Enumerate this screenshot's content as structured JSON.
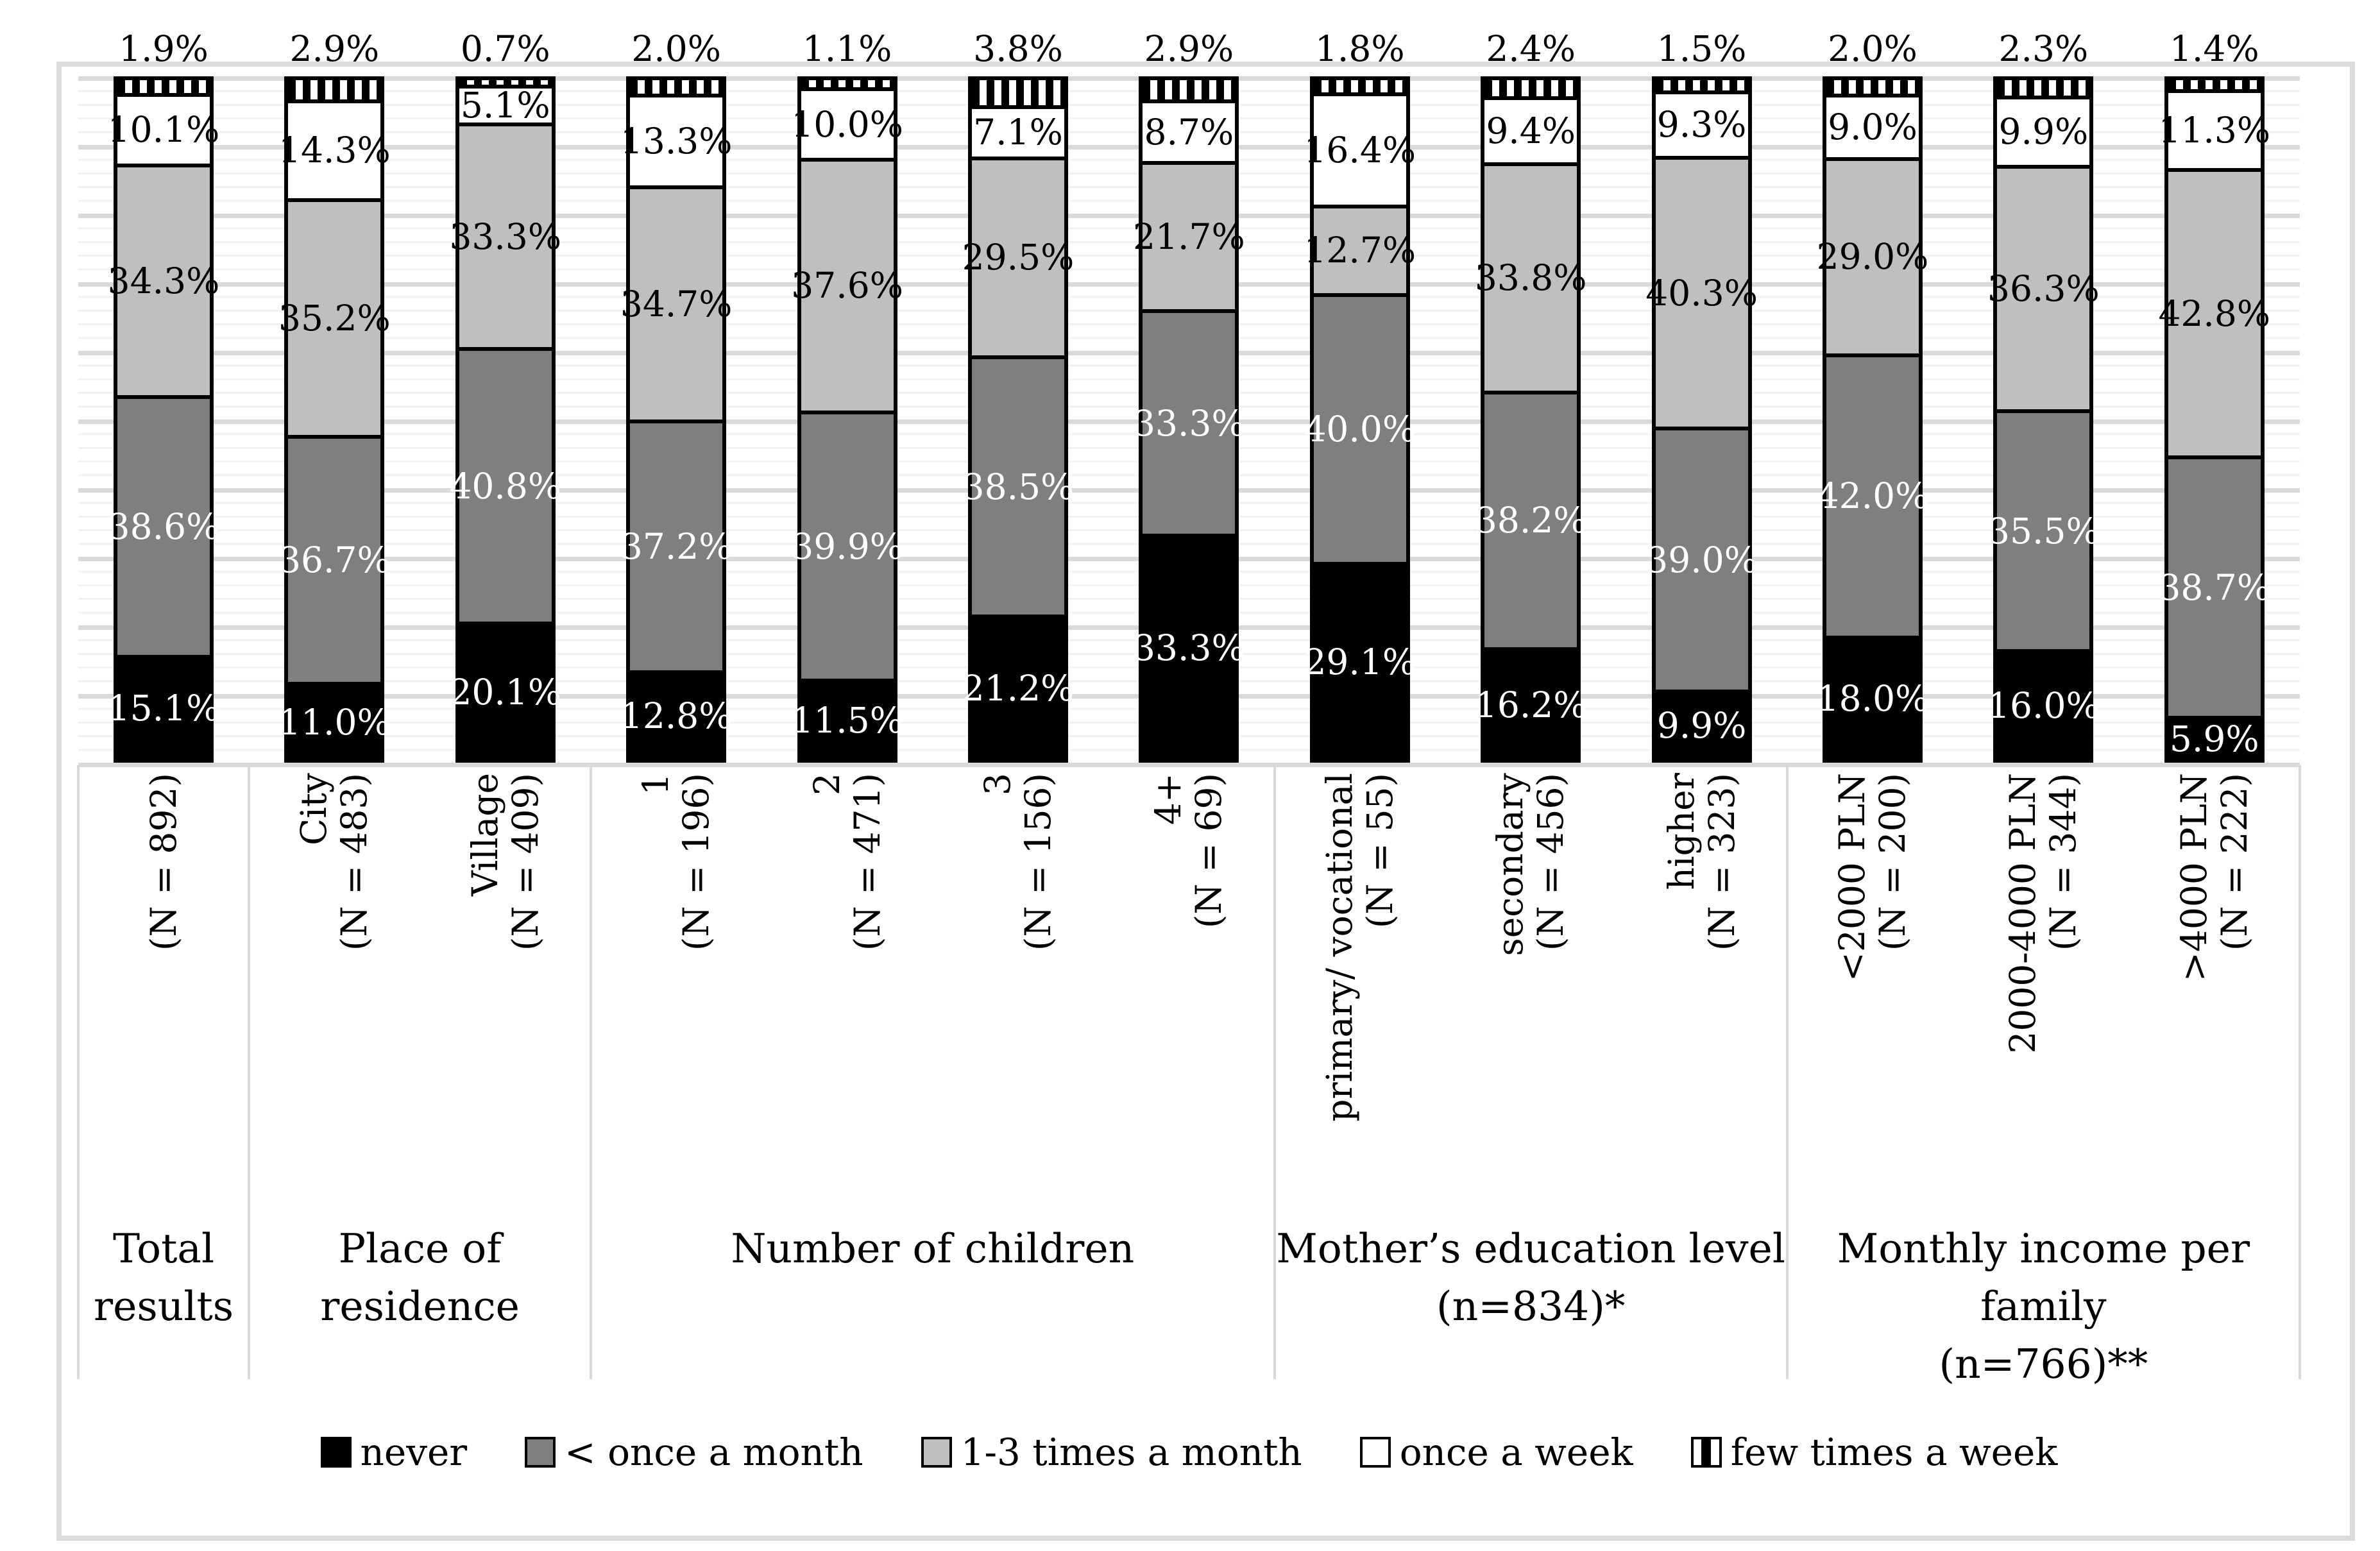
{
  "chart_data": {
    "type": "bar",
    "variant": "100-percent-stacked-vertical",
    "title": "",
    "percent_axis": {
      "min": 0,
      "max": 100,
      "major_gridline_step": 10,
      "minor_gridline_step": 2,
      "grid": true,
      "tick_labels_visible": false
    },
    "stack_order_bottom_to_top": [
      "never",
      "lt_once_month",
      "one_three_month",
      "once_week",
      "few_week"
    ],
    "series_colors": {
      "never": "#000000",
      "lt_once_month": "#7F7F7F",
      "one_three_month": "#BFBFBF",
      "once_week": "#FFFFFF",
      "few_week": "black-white-vertical-stripes"
    },
    "label_rules": {
      "few_week_label": "above bar",
      "other_labels": "centered inside segment",
      "white_text_on": [
        "never",
        "lt_once_month"
      ]
    },
    "legend": {
      "position": "bottom",
      "items": [
        {
          "key": "never",
          "label": "never"
        },
        {
          "key": "lt_once_month",
          "label": "< once a month"
        },
        {
          "key": "one_three_month",
          "label": "1-3 times a month"
        },
        {
          "key": "once_week",
          "label": "once a week"
        },
        {
          "key": "few_week",
          "label": "few times a week"
        }
      ]
    },
    "groups": [
      {
        "title_lines": [
          "Total",
          "results"
        ],
        "bars": [
          {
            "axis_label_lines": [
              "(N = 892)"
            ],
            "values": {
              "never": 15.1,
              "lt_once_month": 38.6,
              "one_three_month": 34.3,
              "once_week": 10.1,
              "few_week": 1.9
            }
          }
        ]
      },
      {
        "title_lines": [
          "Place of residence"
        ],
        "bars": [
          {
            "axis_label_lines": [
              "City",
              "(N = 483)"
            ],
            "values": {
              "never": 11.0,
              "lt_once_month": 36.7,
              "one_three_month": 35.2,
              "once_week": 14.3,
              "few_week": 2.9
            }
          },
          {
            "axis_label_lines": [
              "Village",
              "(N = 409)"
            ],
            "values": {
              "never": 20.1,
              "lt_once_month": 40.8,
              "one_three_month": 33.3,
              "once_week": 5.1,
              "few_week": 0.7
            }
          }
        ]
      },
      {
        "title_lines": [
          "Number of children"
        ],
        "bars": [
          {
            "axis_label_lines": [
              "1",
              "(N = 196)"
            ],
            "values": {
              "never": 12.8,
              "lt_once_month": 37.2,
              "one_three_month": 34.7,
              "once_week": 13.3,
              "few_week": 2.0
            }
          },
          {
            "axis_label_lines": [
              "2",
              "(N = 471)"
            ],
            "values": {
              "never": 11.5,
              "lt_once_month": 39.9,
              "one_three_month": 37.6,
              "once_week": 10.0,
              "few_week": 1.1
            }
          },
          {
            "axis_label_lines": [
              "3",
              "(N = 156)"
            ],
            "values": {
              "never": 21.2,
              "lt_once_month": 38.5,
              "one_three_month": 29.5,
              "once_week": 7.1,
              "few_week": 3.8
            }
          },
          {
            "axis_label_lines": [
              "4+",
              "(N = 69)"
            ],
            "values": {
              "never": 33.3,
              "lt_once_month": 33.3,
              "one_three_month": 21.7,
              "once_week": 8.7,
              "few_week": 2.9
            }
          }
        ]
      },
      {
        "title_lines": [
          "Mother’s education level",
          "(n=834)*"
        ],
        "bars": [
          {
            "axis_label_lines": [
              "primary/ vocational",
              "(N = 55)"
            ],
            "values": {
              "never": 29.1,
              "lt_once_month": 40.0,
              "one_three_month": 12.7,
              "once_week": 16.4,
              "few_week": 1.8
            }
          },
          {
            "axis_label_lines": [
              "secondary",
              "(N = 456)"
            ],
            "values": {
              "never": 16.2,
              "lt_once_month": 38.2,
              "one_three_month": 33.8,
              "once_week": 9.4,
              "few_week": 2.4
            }
          },
          {
            "axis_label_lines": [
              "higher",
              "(N = 323)"
            ],
            "values": {
              "never": 9.9,
              "lt_once_month": 39.0,
              "one_three_month": 40.3,
              "once_week": 9.3,
              "few_week": 1.5
            }
          }
        ]
      },
      {
        "title_lines": [
          "Monthly income per",
          "family",
          "(n=766)**"
        ],
        "bars": [
          {
            "axis_label_lines": [
              "<2000 PLN",
              "(N = 200)"
            ],
            "values": {
              "never": 18.0,
              "lt_once_month": 42.0,
              "one_three_month": 29.0,
              "once_week": 9.0,
              "few_week": 2.0
            }
          },
          {
            "axis_label_lines": [
              "2000-4000 PLN",
              "(N = 344)"
            ],
            "values": {
              "never": 16.0,
              "lt_once_month": 35.5,
              "one_three_month": 36.3,
              "once_week": 9.9,
              "few_week": 2.3
            }
          },
          {
            "axis_label_lines": [
              ">4000 PLN",
              "(N = 222)"
            ],
            "values": {
              "never": 5.9,
              "lt_once_month": 38.7,
              "one_three_month": 42.8,
              "once_week": 11.3,
              "few_week": 1.4
            }
          }
        ]
      }
    ]
  }
}
